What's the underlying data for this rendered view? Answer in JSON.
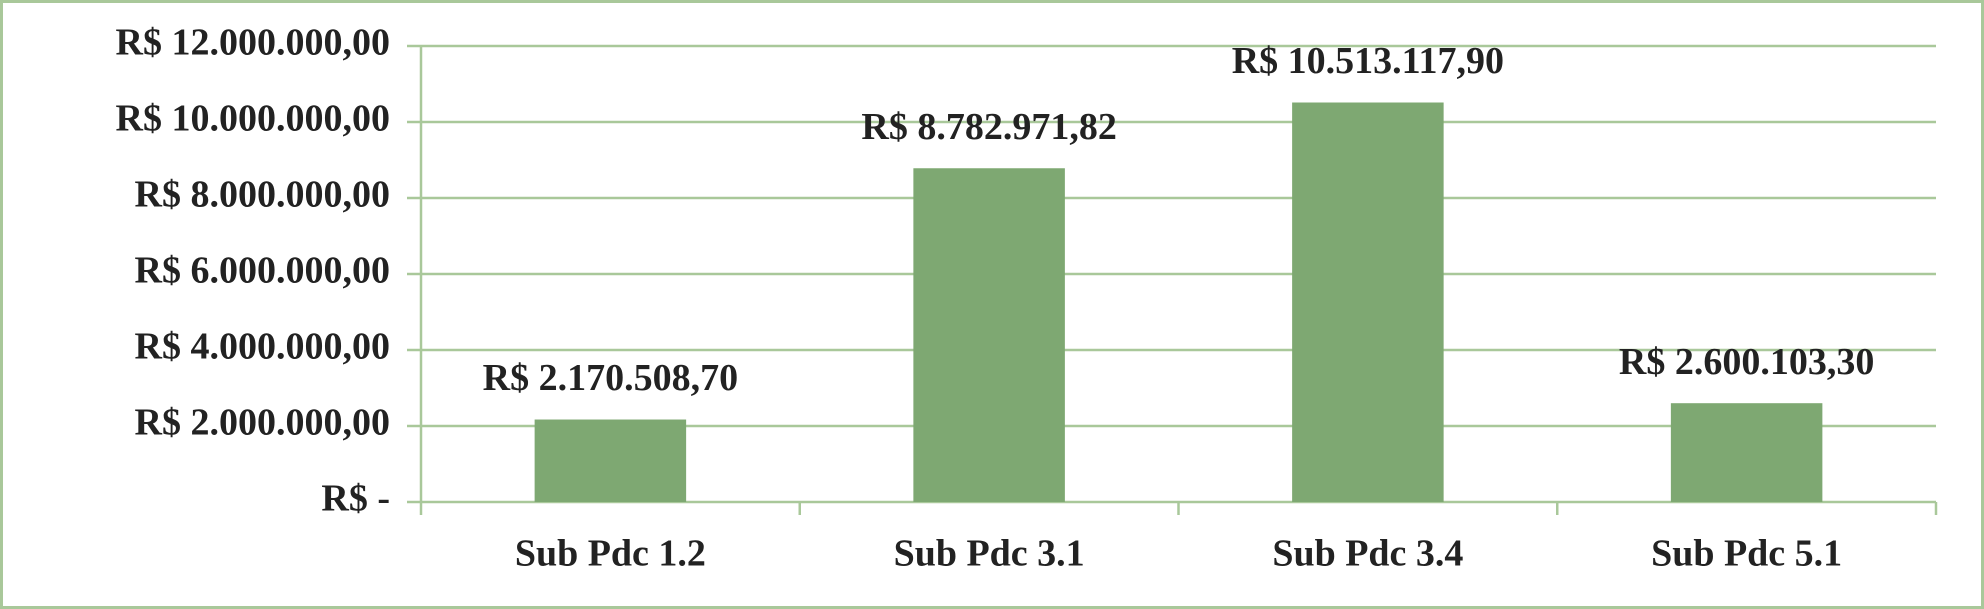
{
  "chart_data": {
    "type": "bar",
    "categories": [
      "Sub Pdc 1.2",
      "Sub Pdc 3.1",
      "Sub Pdc 3.4",
      "Sub Pdc 5.1"
    ],
    "values": [
      2170508.7,
      8782971.82,
      10513117.9,
      2600103.3
    ],
    "value_labels": [
      "R$ 2.170.508,70",
      "R$ 8.782.971,82",
      "R$ 10.513.117,90",
      "R$ 2.600.103,30"
    ],
    "color": "#7ea872",
    "ylim": [
      0,
      12000000
    ],
    "yticks": [
      {
        "value": 0,
        "label": "R$ -"
      },
      {
        "value": 2000000,
        "label": "R$ 2.000.000,00"
      },
      {
        "value": 4000000,
        "label": "R$ 4.000.000,00"
      },
      {
        "value": 6000000,
        "label": "R$ 6.000.000,00"
      },
      {
        "value": 8000000,
        "label": "R$ 8.000.000,00"
      },
      {
        "value": 10000000,
        "label": "R$ 10.000.000,00"
      },
      {
        "value": 12000000,
        "label": "R$ 12.000.000,00"
      }
    ],
    "grid": true
  }
}
